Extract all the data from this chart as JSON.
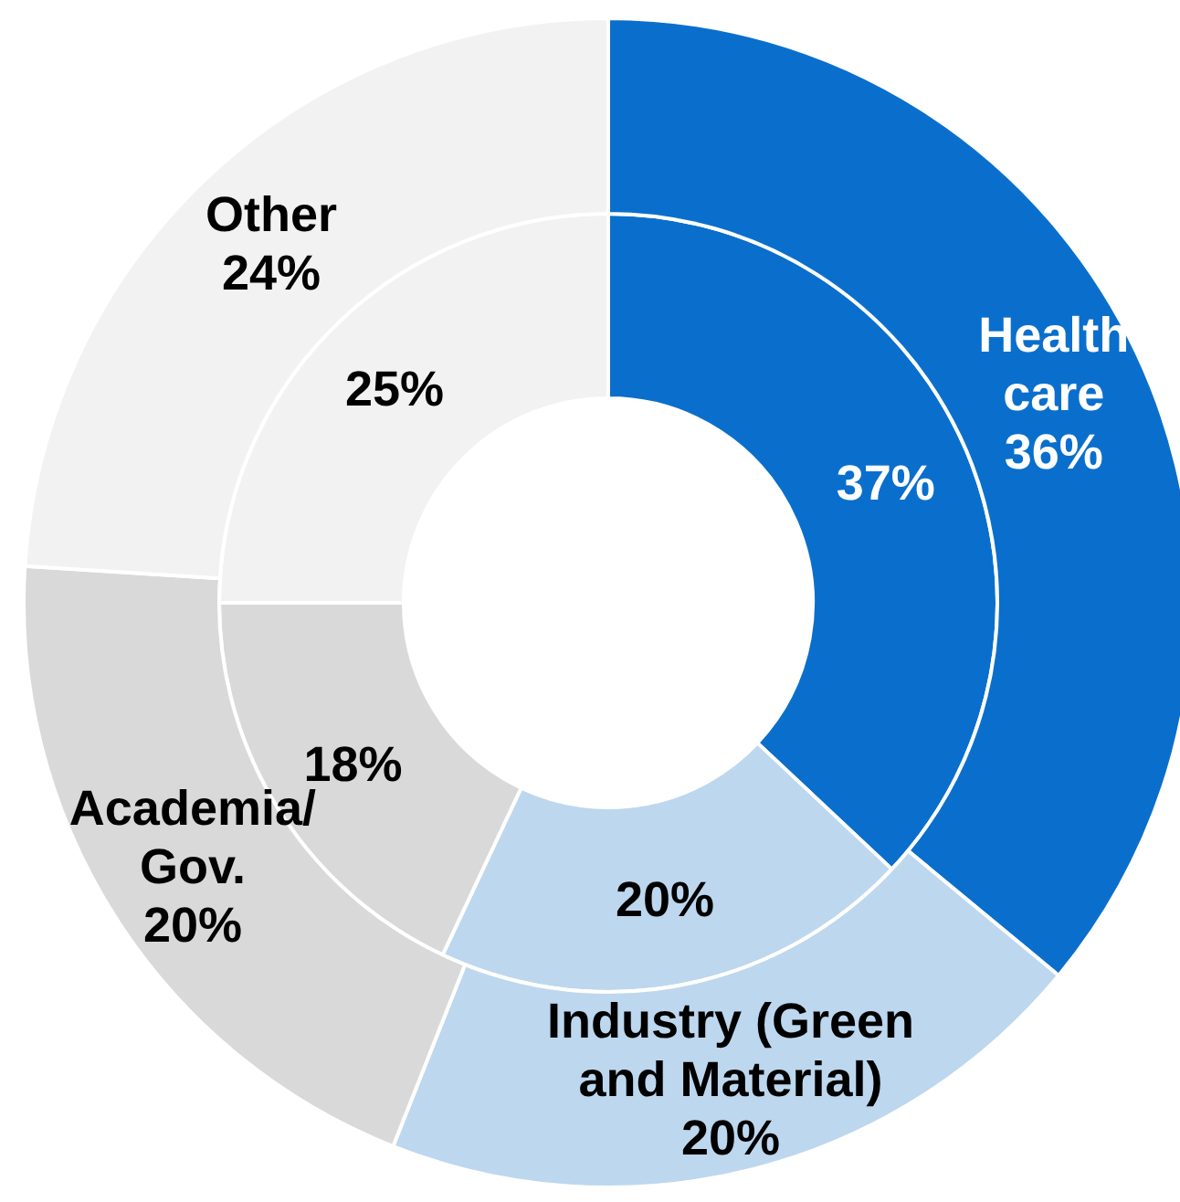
{
  "chart_data": {
    "type": "donut",
    "categories": [
      "Health care",
      "Industry (Green and Material)",
      "Academia/Gov.",
      "Other"
    ],
    "colors": [
      "#0a6fcc",
      "#bdd7ee",
      "#d9d9d9",
      "#f2f2f2"
    ],
    "series": [
      {
        "values": [
          37,
          20,
          18,
          25
        ],
        "value_labels": [
          "37%",
          "20%",
          "18%",
          "25%"
        ]
      },
      {
        "values": [
          36,
          20,
          20,
          24
        ],
        "value_labels": [
          "36%",
          "20%",
          "20%",
          "24%"
        ]
      }
    ],
    "data_labels": true,
    "legend": false
  }
}
